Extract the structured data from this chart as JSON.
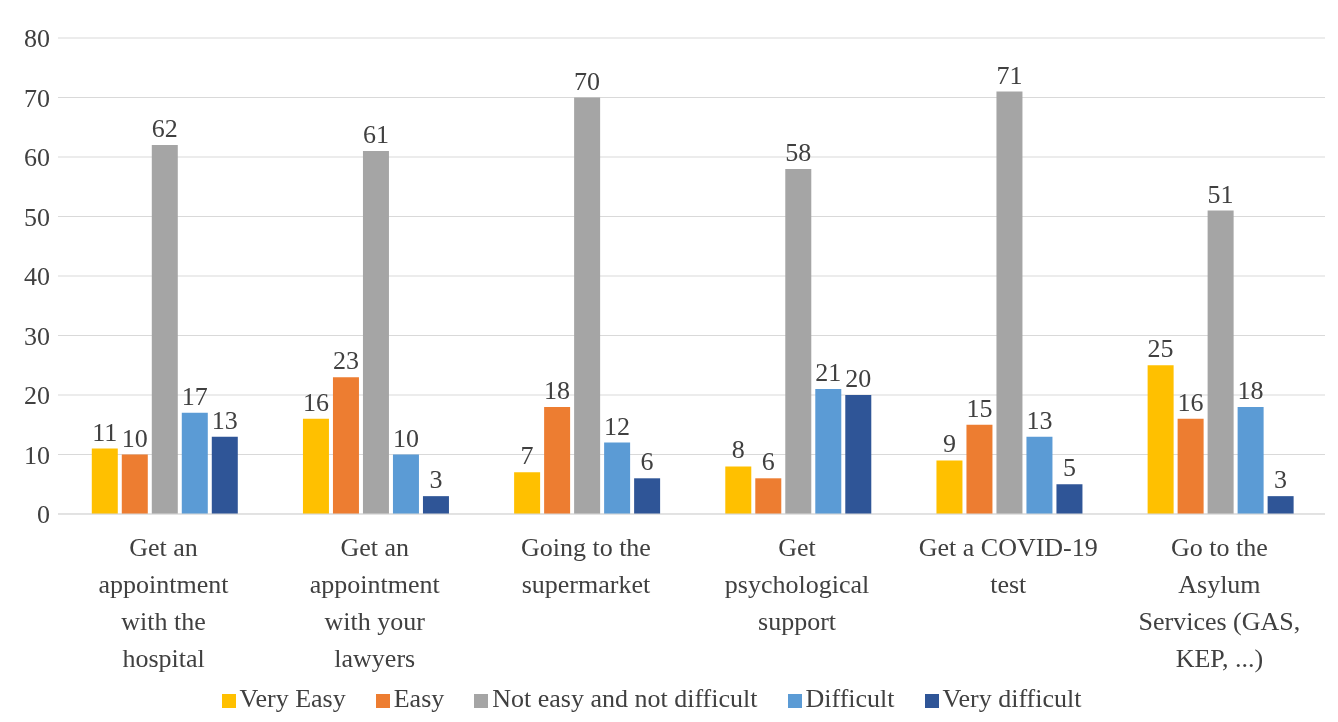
{
  "chart_data": {
    "type": "bar",
    "categories": [
      "Get an appointment with the hospital",
      "Get an appointment with your lawyers",
      "Going to the supermarket",
      "Get psychological support",
      "Get a COVID-19 test",
      "Go to the Asylum Services (GAS, KEP, ...)"
    ],
    "series": [
      {
        "name": "Very Easy",
        "color": "#ffc000",
        "values": [
          11,
          16,
          7,
          8,
          9,
          25
        ]
      },
      {
        "name": "Easy",
        "color": "#ed7d31",
        "values": [
          10,
          23,
          18,
          6,
          15,
          16
        ]
      },
      {
        "name": "Not easy and not difficult",
        "color": "#a5a5a5",
        "values": [
          62,
          61,
          70,
          58,
          71,
          51
        ]
      },
      {
        "name": "Difficult",
        "color": "#5b9bd5",
        "values": [
          17,
          10,
          12,
          21,
          13,
          18
        ]
      },
      {
        "name": "Very difficult",
        "color": "#2f5597",
        "values": [
          13,
          3,
          6,
          20,
          5,
          3
        ]
      }
    ],
    "ylim": [
      0,
      80
    ],
    "yticks": [
      0,
      10,
      20,
      30,
      40,
      50,
      60,
      70,
      80
    ],
    "grid": "y",
    "legend": "bottom",
    "data_labels": true
  }
}
